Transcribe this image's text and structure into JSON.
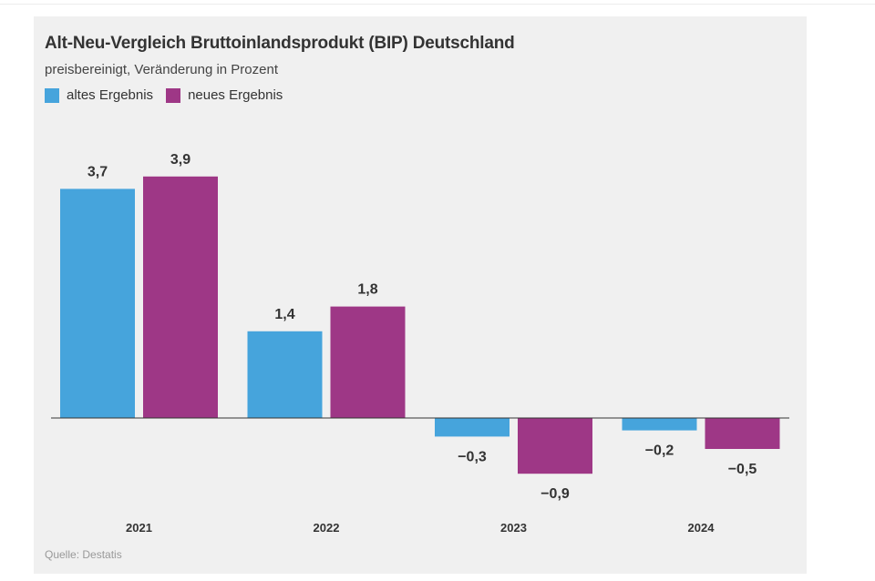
{
  "chart_data": {
    "type": "bar",
    "title": "Alt-Neu-Vergleich Bruttoinlandsprodukt (BIP) Deutschland",
    "subtitle": "preisbereinigt, Veränderung in Prozent",
    "xlabel": "",
    "ylabel": "",
    "categories": [
      "2021",
      "2022",
      "2023",
      "2024"
    ],
    "series": [
      {
        "name": "altes Ergebnis",
        "color": "#46a4dc",
        "values": [
          3.7,
          1.4,
          -0.3,
          -0.2
        ],
        "labels": [
          "3,7",
          "1,4",
          "−0,3",
          "−0,2"
        ]
      },
      {
        "name": "neues Ergebnis",
        "color": "#9e3786",
        "values": [
          3.9,
          1.8,
          -0.9,
          -0.5
        ],
        "labels": [
          "3,9",
          "1,8",
          "−0,9",
          "−0,5"
        ]
      }
    ],
    "ylim": [
      -1.5,
      4.5
    ],
    "grid": false,
    "legend_position": "top-left",
    "source": "Quelle: Destatis"
  }
}
